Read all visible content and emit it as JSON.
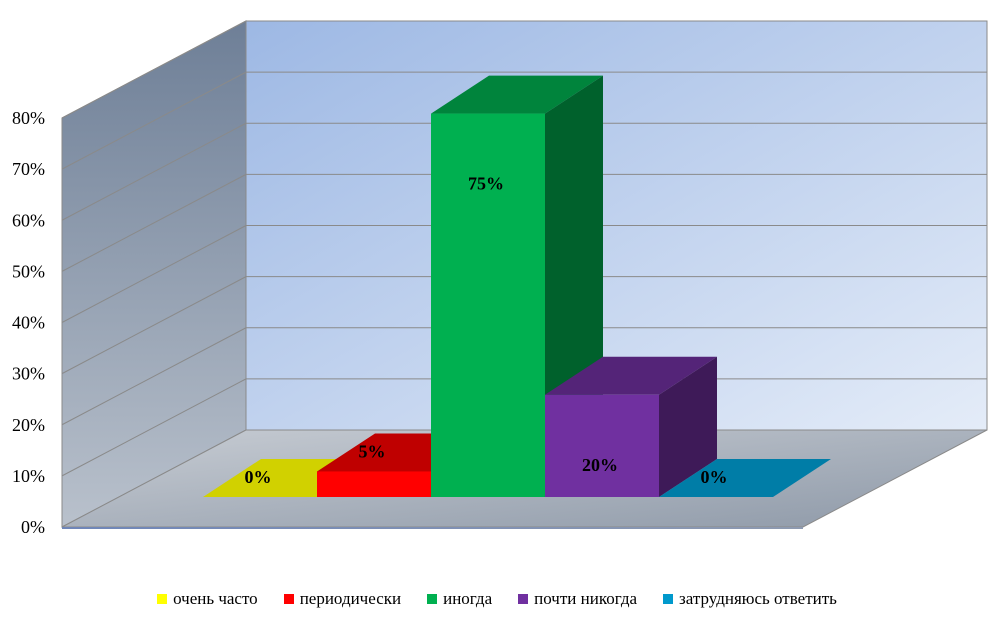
{
  "chart_data": {
    "type": "bar",
    "categories": [
      "очень часто",
      "периодически",
      "иногда",
      "почти никогда",
      "затрудняюсь ответить"
    ],
    "values": [
      0,
      5,
      75,
      20,
      0
    ],
    "data_labels": [
      "0%",
      "5%",
      "75%",
      "20%",
      "0%"
    ],
    "ylim": [
      0,
      80
    ],
    "y_ticks": [
      "0%",
      "10%",
      "20%",
      "30%",
      "40%",
      "50%",
      "60%",
      "70%",
      "80%"
    ],
    "grid": true,
    "legend_position": "bottom",
    "colors": [
      "#ffff00",
      "#ff0000",
      "#00b050",
      "#7030a0",
      "#0099cc"
    ]
  }
}
